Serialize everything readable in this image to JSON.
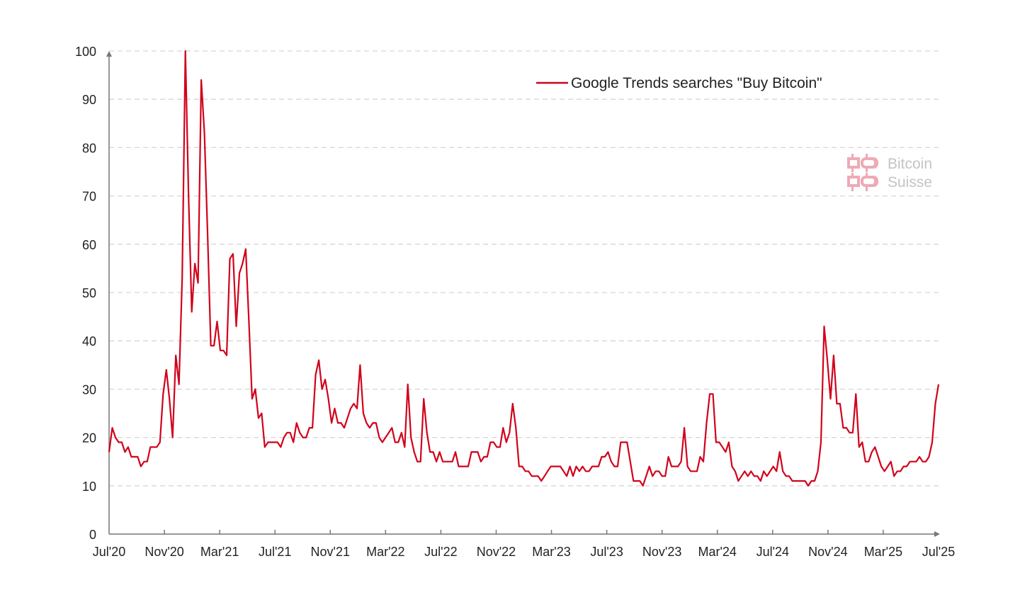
{
  "chart_data": {
    "type": "line",
    "title": "",
    "xlabel": "",
    "ylabel": "",
    "ylim": [
      0,
      100
    ],
    "yticks": [
      "0",
      "10",
      "20",
      "30",
      "40",
      "50",
      "60",
      "70",
      "80",
      "90",
      "100"
    ],
    "xticks": [
      "Jul'20",
      "Nov'20",
      "Mar'21",
      "Jul'21",
      "Nov'21",
      "Mar'22",
      "Jul'22",
      "Nov'22",
      "Mar'23",
      "Jul'23",
      "Nov'23",
      "Mar'24",
      "Jul'24",
      "Nov'24",
      "Mar'25",
      "Jul'25"
    ],
    "grid": true,
    "legend_placement": "top-right",
    "series": [
      {
        "name": "Google Trends searches \"Buy Bitcoin\"",
        "color": "#d0021b",
        "frequency": "weekly",
        "values": [
          17,
          22,
          20,
          19,
          19,
          17,
          18,
          16,
          16,
          16,
          14,
          15,
          15,
          18,
          18,
          18,
          19,
          29,
          34,
          28,
          20,
          37,
          31,
          53,
          100,
          70,
          46,
          56,
          52,
          94,
          83,
          62,
          39,
          39,
          44,
          38,
          38,
          37,
          57,
          58,
          43,
          54,
          56,
          59,
          44,
          28,
          30,
          24,
          25,
          18,
          19,
          19,
          19,
          19,
          18,
          20,
          21,
          21,
          19,
          23,
          21,
          20,
          20,
          22,
          22,
          33,
          36,
          30,
          32,
          28,
          23,
          26,
          23,
          23,
          22,
          24,
          26,
          27,
          26,
          35,
          25,
          23,
          22,
          23,
          23,
          20,
          19,
          20,
          21,
          22,
          19,
          19,
          21,
          18,
          31,
          20,
          17,
          15,
          15,
          28,
          21,
          17,
          17,
          15,
          17,
          15,
          15,
          15,
          15,
          17,
          14,
          14,
          14,
          14,
          17,
          17,
          17,
          15,
          16,
          16,
          19,
          19,
          18,
          18,
          22,
          19,
          21,
          27,
          22,
          14,
          14,
          13,
          13,
          12,
          12,
          12,
          11,
          12,
          13,
          14,
          14,
          14,
          14,
          13,
          12,
          14,
          12,
          14,
          13,
          14,
          13,
          13,
          14,
          14,
          14,
          16,
          16,
          17,
          15,
          14,
          14,
          19,
          19,
          19,
          15,
          11,
          11,
          11,
          10,
          12,
          14,
          12,
          13,
          13,
          12,
          12,
          16,
          14,
          14,
          14,
          15,
          22,
          14,
          13,
          13,
          13,
          16,
          15,
          23,
          29,
          29,
          19,
          19,
          18,
          17,
          19,
          14,
          13,
          11,
          12,
          13,
          12,
          13,
          12,
          12,
          11,
          13,
          12,
          13,
          14,
          13,
          17,
          13,
          12,
          12,
          11,
          11,
          11,
          11,
          11,
          10,
          11,
          11,
          13,
          19,
          43,
          36,
          28,
          37,
          27,
          27,
          22,
          22,
          21,
          21,
          29,
          18,
          19,
          15,
          15,
          17,
          18,
          16,
          14,
          13,
          14,
          15,
          12,
          13,
          13,
          14,
          14,
          15,
          15,
          15,
          16,
          15,
          15,
          16,
          19,
          27,
          31
        ]
      }
    ]
  },
  "watermark": {
    "line1": "Bitcoin",
    "line2": "Suisse",
    "color": "#eeaab5"
  }
}
